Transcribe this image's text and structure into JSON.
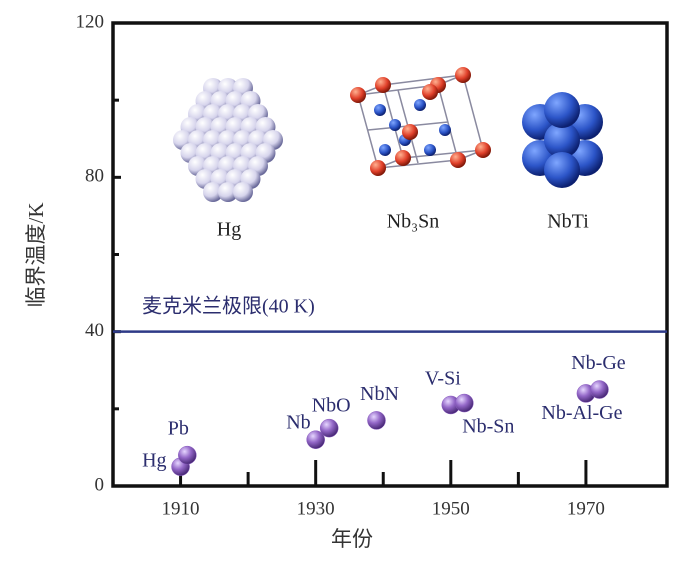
{
  "chart_data": {
    "type": "scatter",
    "xlabel": "年份",
    "ylabel": "临界温度/K",
    "x": [
      1910,
      1911,
      1930,
      1932,
      1939,
      1950,
      1952,
      1970,
      1972
    ],
    "values": [
      5,
      8,
      12,
      15,
      17,
      21,
      21.5,
      24,
      25
    ],
    "point_labels": [
      "Hg",
      "Pb",
      "Nb",
      "NbO",
      "NbN",
      "V-Si",
      "Nb-Sn",
      "Nb-Al-Ge",
      "Nb-Ge"
    ],
    "color": "#8a5cc0",
    "xlim": [
      1900,
      1982
    ],
    "xticks": [
      1910,
      1930,
      1950,
      1970
    ],
    "xminorticks": [
      1920,
      1940,
      1960
    ],
    "ylim": [
      0,
      120
    ],
    "yticks": [
      0,
      40,
      80,
      120
    ],
    "yminorticks": [
      20,
      60,
      100
    ],
    "reference_line": {
      "value": 40,
      "label": "麦克米兰极限(40 K)",
      "color": "#2e3a87"
    },
    "illustrations": [
      "Hg",
      "Nb₃Sn",
      "NbTi"
    ]
  }
}
